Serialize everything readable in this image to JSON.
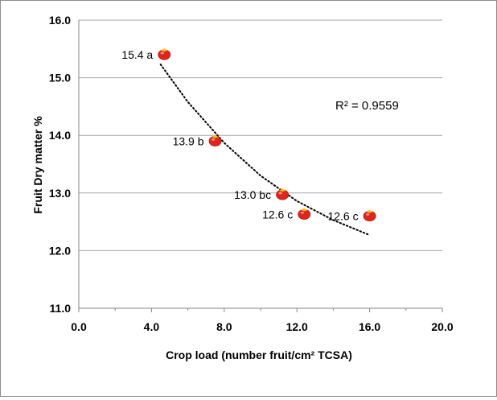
{
  "chart_data": {
    "type": "scatter",
    "xlabel": "Crop load (number fruit/cm² TCSA)",
    "ylabel": "Fruit Dry matter %",
    "xlim": [
      0,
      20
    ],
    "ylim": [
      11,
      16
    ],
    "xticks": [
      "0.0",
      "4.0",
      "8.0",
      "12.0",
      "16.0",
      "20.0"
    ],
    "yticks": [
      "11.0",
      "12.0",
      "13.0",
      "14.0",
      "15.0",
      "16.0"
    ],
    "grid": "horizontal",
    "points": [
      {
        "x": 4.7,
        "y": 15.4,
        "label": "15.4 a"
      },
      {
        "x": 7.5,
        "y": 13.9,
        "label": "13.9 b"
      },
      {
        "x": 11.2,
        "y": 12.97,
        "label": "13.0 bc"
      },
      {
        "x": 12.4,
        "y": 12.63,
        "label": "12.6 c"
      },
      {
        "x": 16.0,
        "y": 12.6,
        "label": "12.6 c"
      }
    ],
    "trendline": {
      "style": "dotted",
      "x": [
        4.5,
        6.0,
        8.0,
        10.0,
        12.0,
        14.0,
        16.0
      ],
      "y": [
        15.23,
        14.58,
        13.87,
        13.3,
        12.86,
        12.53,
        12.27
      ]
    },
    "annotation": "R² = 0.9559",
    "marker_color": "#e0261b",
    "marker_stem_color": "#f2c418"
  }
}
